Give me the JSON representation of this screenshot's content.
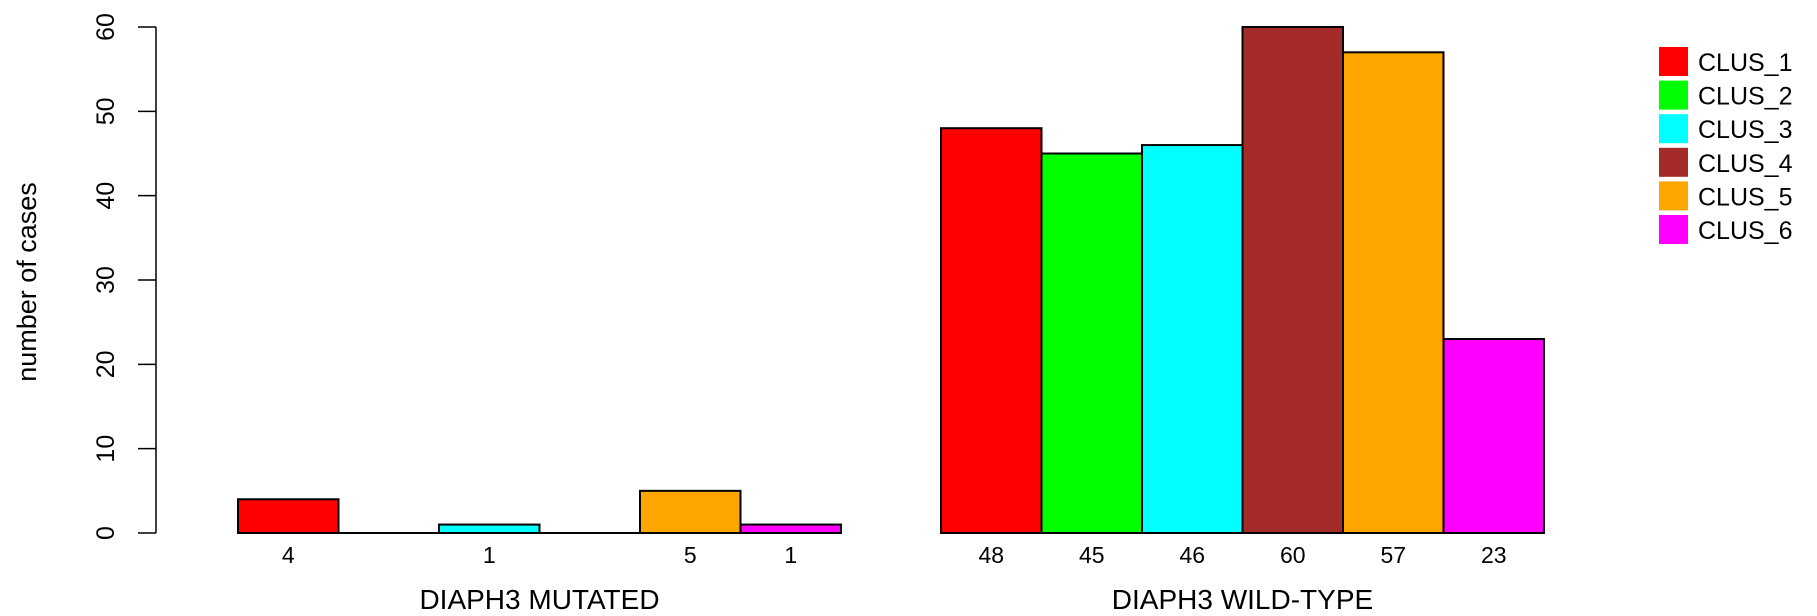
{
  "chart_data": {
    "type": "bar",
    "ylabel": "number of cases",
    "ylim": [
      0,
      60
    ],
    "yticks": [
      0,
      10,
      20,
      30,
      40,
      50,
      60
    ],
    "grid": false,
    "legend_position": "top-right",
    "series": [
      {
        "name": "CLUS_1",
        "color": "#ff0000"
      },
      {
        "name": "CLUS_2",
        "color": "#00ff00"
      },
      {
        "name": "CLUS_3",
        "color": "#00ffff"
      },
      {
        "name": "CLUS_4",
        "color": "#a52a2a"
      },
      {
        "name": "CLUS_5",
        "color": "#ffa500"
      },
      {
        "name": "CLUS_6",
        "color": "#ff00ff"
      }
    ],
    "groups": [
      {
        "name": "DIAPH3 MUTATED",
        "values": [
          4,
          0,
          1,
          0,
          5,
          1
        ],
        "labels": [
          "4",
          "",
          "1",
          "",
          "5",
          "1"
        ]
      },
      {
        "name": "DIAPH3 WILD-TYPE",
        "values": [
          48,
          45,
          46,
          60,
          57,
          23
        ],
        "labels": [
          "48",
          "45",
          "46",
          "60",
          "57",
          "23"
        ]
      }
    ]
  }
}
